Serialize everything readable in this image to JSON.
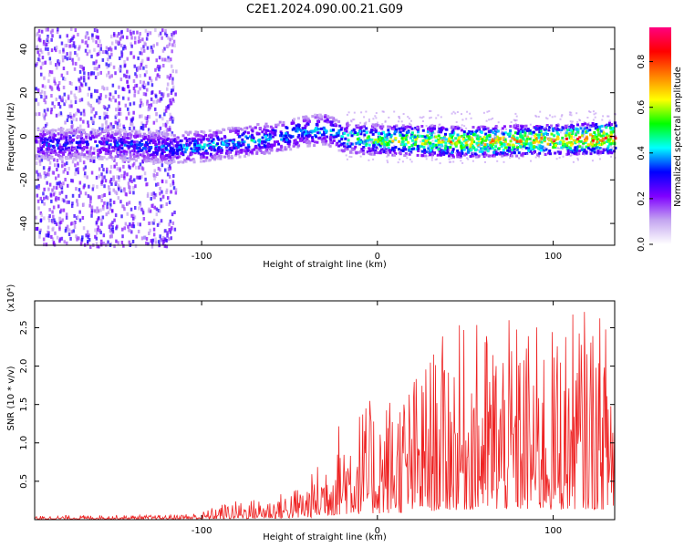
{
  "figure": {
    "title": "C2E1.2024.090.00.21.G09"
  },
  "chart_data": [
    {
      "type": "heatmap",
      "title": "C2E1.2024.090.00.21.G09",
      "xlabel": "Height of straight line (km)",
      "ylabel": "Frequency (Hz)",
      "xlim": [
        -195,
        135
      ],
      "ylim": [
        -50,
        50
      ],
      "x_ticks": [
        -100,
        0,
        100
      ],
      "y_ticks": [
        -40,
        -20,
        0,
        20,
        40
      ],
      "colorbar": {
        "label": "Normalized spectral amplitude",
        "range": [
          0,
          0.95
        ],
        "ticks": [
          0.0,
          0.2,
          0.4,
          0.6,
          0.8
        ],
        "colors": [
          "#ffffff",
          "#c4a6f0",
          "#7f00ff",
          "#0000ff",
          "#00ffff",
          "#00ff00",
          "#ffff00",
          "#ff8000",
          "#ff0000",
          "#ff0080"
        ]
      },
      "ridge": {
        "description_points_x": [
          -195,
          -150,
          -120,
          -100,
          -80,
          -60,
          -40,
          -30,
          -20,
          0,
          50,
          100,
          135
        ],
        "center_frequency_hz": [
          -3,
          -3,
          -5,
          -4,
          -2,
          0,
          3,
          4,
          0,
          -1,
          -2,
          -1,
          0
        ],
        "peak_amplitude": [
          0.35,
          0.35,
          0.4,
          0.45,
          0.45,
          0.45,
          0.45,
          0.45,
          0.5,
          0.65,
          0.75,
          0.8,
          0.9
        ]
      }
    },
    {
      "type": "line",
      "xlabel": "Height of straight line (km)",
      "ylabel": "SNR (10 * v/v)",
      "y_multiplier_label": "(x10⁴)",
      "xlim": [
        -195,
        135
      ],
      "ylim": [
        0,
        2.85
      ],
      "x_ticks": [
        -100,
        0,
        100
      ],
      "y_ticks": [
        0.5,
        1.0,
        1.5,
        2.0,
        2.5
      ],
      "color": "#ee2222",
      "envelope": {
        "x": [
          -195,
          -160,
          -120,
          -100,
          -90,
          -80,
          -60,
          -40,
          -30,
          -20,
          0,
          20,
          40,
          60,
          80,
          100,
          115,
          135
        ],
        "max_snr": [
          0.05,
          0.06,
          0.06,
          0.1,
          0.2,
          0.25,
          0.3,
          0.5,
          0.9,
          1.4,
          1.6,
          1.9,
          2.5,
          2.6,
          2.6,
          2.5,
          2.8,
          2.6
        ]
      }
    }
  ]
}
